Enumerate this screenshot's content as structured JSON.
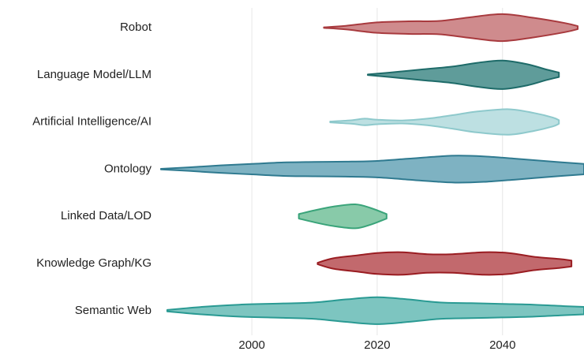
{
  "chart_data": {
    "type": "violin",
    "xlim": [
      1985,
      2053
    ],
    "xticks": [
      2000,
      2020,
      2040
    ],
    "grid": true,
    "series": [
      {
        "name": "Robot",
        "fill": "#cf8b8d",
        "stroke": "#a83a3e",
        "x": [
          2011.5,
          2015,
          2020,
          2025,
          2030,
          2035,
          2040,
          2045,
          2050,
          2052
        ],
        "density": [
          0.02,
          0.12,
          0.35,
          0.42,
          0.45,
          0.7,
          0.9,
          0.65,
          0.3,
          0.1
        ]
      },
      {
        "name": "Language Model/LLM",
        "fill": "#5f9c9a",
        "stroke": "#1e6b69",
        "x": [
          2018.5,
          2022,
          2027,
          2032,
          2036,
          2040,
          2044,
          2047,
          2049
        ],
        "density": [
          0.02,
          0.15,
          0.35,
          0.55,
          0.8,
          0.95,
          0.7,
          0.35,
          0.15
        ]
      },
      {
        "name": "Artificial Intelligence/AI",
        "fill": "#bde0e2",
        "stroke": "#8ec9cc",
        "x": [
          2012.5,
          2016,
          2018,
          2020,
          2024,
          2028,
          2032,
          2036,
          2041,
          2045,
          2048,
          2049
        ],
        "density": [
          0.03,
          0.12,
          0.22,
          0.15,
          0.1,
          0.22,
          0.45,
          0.7,
          0.85,
          0.6,
          0.3,
          0.12
        ]
      },
      {
        "name": "Ontology",
        "fill": "#7eb2c2",
        "stroke": "#2f7a90",
        "x": [
          1985.5,
          1990,
          1995,
          2000,
          2005,
          2010,
          2015,
          2020,
          2025,
          2030,
          2033,
          2037,
          2042,
          2048,
          2053
        ],
        "density": [
          0.02,
          0.12,
          0.25,
          0.35,
          0.45,
          0.48,
          0.5,
          0.55,
          0.7,
          0.85,
          0.9,
          0.85,
          0.7,
          0.5,
          0.35
        ]
      },
      {
        "name": "Linked Data/LOD",
        "fill": "#88caa9",
        "stroke": "#3aa47a",
        "x": [
          2007.5,
          2010,
          2013,
          2016.5,
          2019,
          2021.5
        ],
        "density": [
          0.15,
          0.4,
          0.65,
          0.8,
          0.55,
          0.15
        ]
      },
      {
        "name": "Knowledge Graph/KG",
        "fill": "#c2696d",
        "stroke": "#9a1d22",
        "x": [
          2010.5,
          2013,
          2017,
          2020,
          2024,
          2028,
          2032,
          2037,
          2041,
          2045,
          2049,
          2051
        ],
        "density": [
          0.05,
          0.35,
          0.55,
          0.7,
          0.75,
          0.62,
          0.62,
          0.75,
          0.7,
          0.45,
          0.3,
          0.2
        ]
      },
      {
        "name": "Semantic Web",
        "fill": "#7dc5c0",
        "stroke": "#2a9a93",
        "x": [
          1986.5,
          1992,
          1998,
          2005,
          2010,
          2015,
          2020,
          2025,
          2030,
          2035,
          2040,
          2045,
          2050,
          2053
        ],
        "density": [
          0.05,
          0.25,
          0.4,
          0.48,
          0.55,
          0.75,
          0.9,
          0.75,
          0.55,
          0.5,
          0.45,
          0.4,
          0.3,
          0.25
        ]
      }
    ]
  }
}
